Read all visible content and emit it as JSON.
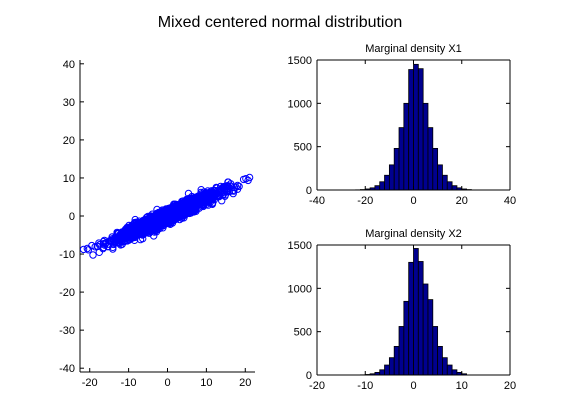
{
  "figure": {
    "title": "Mixed centered normal distribution"
  },
  "colors": {
    "scatter": "#0000ff",
    "bar_fill": "#00008f",
    "bar_edge": "#000000"
  },
  "chart_data": [
    {
      "id": "scatter",
      "type": "scatter",
      "title": "",
      "xlabel": "",
      "ylabel": "",
      "xlim": [
        -22.5,
        22.5
      ],
      "ylim": [
        -41,
        41
      ],
      "xticks": [
        -20,
        -10,
        0,
        10,
        20
      ],
      "yticks": [
        -40,
        -30,
        -20,
        -10,
        0,
        10,
        20,
        30,
        40
      ],
      "marker": "o",
      "relation": {
        "slope": 0.4545,
        "intercept": 0,
        "spread": 0.9
      },
      "extent": {
        "x_min": -22,
        "x_max": 22,
        "y_min": -10,
        "y_max": 10
      },
      "n_points": 2500
    },
    {
      "id": "hist1",
      "type": "bar",
      "title": "Marginal density X1",
      "xlabel": "",
      "ylabel": "",
      "xlim": [
        -40,
        40
      ],
      "ylim": [
        0,
        1500
      ],
      "xticks": [
        -40,
        -20,
        0,
        20,
        40
      ],
      "yticks": [
        0,
        500,
        1000,
        1500
      ],
      "bin_edges": [
        -24,
        -22,
        -20,
        -18,
        -16,
        -14,
        -12,
        -10,
        -8,
        -6,
        -4,
        -2,
        0,
        2,
        4,
        6,
        8,
        10,
        12,
        14,
        16,
        18,
        20,
        22,
        24
      ],
      "values": [
        2,
        5,
        12,
        25,
        50,
        95,
        170,
        290,
        480,
        720,
        1000,
        1390,
        1450,
        1400,
        1000,
        720,
        480,
        290,
        170,
        95,
        50,
        25,
        12,
        5
      ]
    },
    {
      "id": "hist2",
      "type": "bar",
      "title": "Marginal density X2",
      "xlabel": "",
      "ylabel": "",
      "xlim": [
        -20,
        20
      ],
      "ylim": [
        0,
        1500
      ],
      "xticks": [
        -20,
        -10,
        0,
        10,
        20
      ],
      "yticks": [
        0,
        500,
        1000,
        1500
      ],
      "bin_edges": [
        -11,
        -10,
        -9,
        -8,
        -7,
        -6,
        -5,
        -4,
        -3,
        -2,
        -1,
        0,
        1,
        2,
        3,
        4,
        5,
        6,
        7,
        8,
        9,
        10,
        11
      ],
      "values": [
        2,
        6,
        14,
        30,
        60,
        115,
        200,
        330,
        560,
        850,
        1300,
        1460,
        1310,
        1050,
        870,
        560,
        330,
        200,
        115,
        60,
        30,
        14
      ]
    }
  ]
}
